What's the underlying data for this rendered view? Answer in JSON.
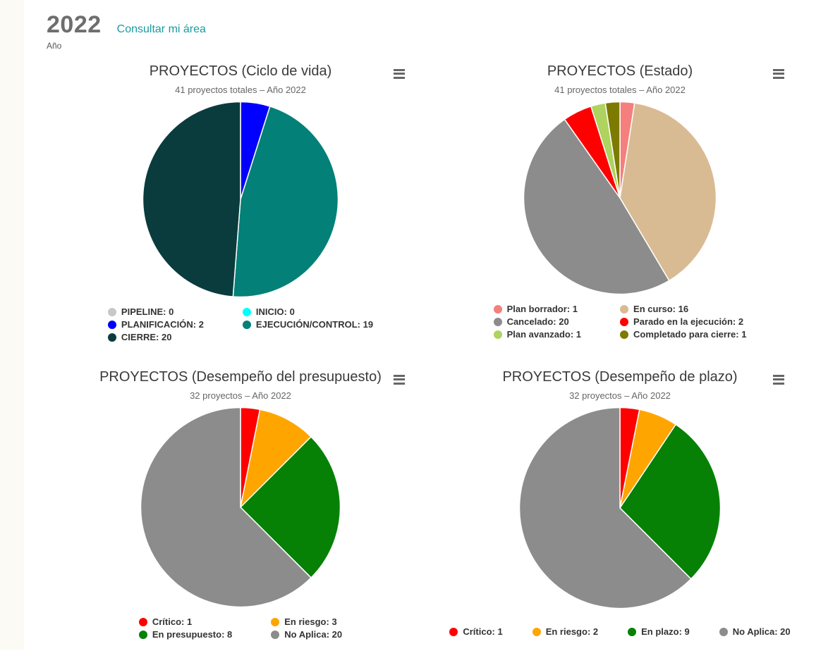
{
  "header": {
    "year": "2022",
    "year_label": "Año",
    "link_label": "Consultar mi área",
    "link_color": "#1b9aa0"
  },
  "ui": {
    "context_menu_icon": "hamburger-icon",
    "legend_marker_shape": "circle",
    "slice_border_color": "#ffffff"
  },
  "chart_data": [
    {
      "type": "pie",
      "title": "PROYECTOS (Ciclo de vida)",
      "subtitle": "41 proyectos totales – Año 2022",
      "total": 41,
      "labels": [
        "PIPELINE",
        "INICIO",
        "PLANIFICACIÓN",
        "EJECUCIÓN/CONTROL",
        "CIERRE"
      ],
      "values": [
        0,
        0,
        2,
        19,
        20
      ],
      "colors": [
        "#c8c8c8",
        "#00ffff",
        "#0000ff",
        "#038077",
        "#0a3c3e"
      ],
      "legend_position": "bottom",
      "legend_columns": 2
    },
    {
      "type": "pie",
      "title": "PROYECTOS (Estado)",
      "subtitle": "41 proyectos totales – Año 2022",
      "total": 41,
      "labels": [
        "Plan borrador",
        "En curso",
        "Cancelado",
        "Parado en la ejecución",
        "Plan avanzado",
        "Completado para cierre"
      ],
      "values": [
        1,
        16,
        20,
        2,
        1,
        1
      ],
      "colors": [
        "#f47f7c",
        "#d9bb93",
        "#8c8c8c",
        "#ff0000",
        "#aed35f",
        "#7d7a00"
      ],
      "legend_position": "bottom",
      "legend_columns": 2
    },
    {
      "type": "pie",
      "title": "PROYECTOS (Desempeño del presupuesto)",
      "subtitle": "32 proyectos – Año 2022",
      "total": 32,
      "labels": [
        "Crítico",
        "En riesgo",
        "En presupuesto",
        "No Aplica"
      ],
      "values": [
        1,
        3,
        8,
        20
      ],
      "colors": [
        "#ff0000",
        "#ffa500",
        "#068106",
        "#8c8c8c"
      ],
      "legend_position": "bottom",
      "legend_columns": 2
    },
    {
      "type": "pie",
      "title": "PROYECTOS (Desempeño de plazo)",
      "subtitle": "32 proyectos – Año 2022",
      "total": 32,
      "labels": [
        "Crítico",
        "En riesgo",
        "En plazo",
        "No Aplica"
      ],
      "values": [
        1,
        2,
        9,
        20
      ],
      "colors": [
        "#ff0000",
        "#ffa500",
        "#068106",
        "#8c8c8c"
      ],
      "legend_position": "bottom",
      "legend_columns": 4
    }
  ]
}
